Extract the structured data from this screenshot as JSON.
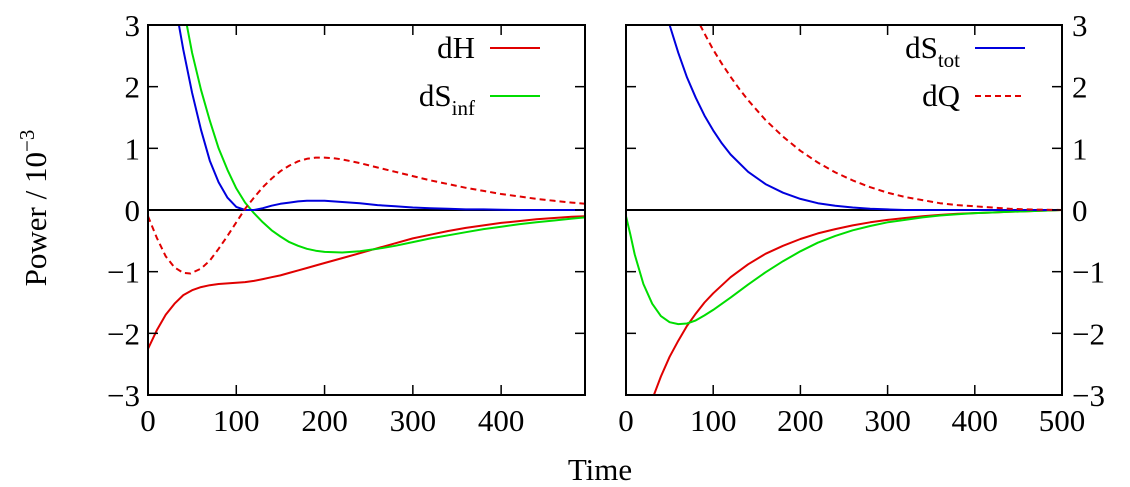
{
  "chart_data": {
    "type": "line",
    "ylabel": "Power / 10",
    "ylabel_exponent": "−3",
    "xlabel": "Time",
    "panels": [
      {
        "name": "left",
        "xlim": [
          0,
          495
        ],
        "ylim": [
          -3,
          3
        ],
        "x_ticks": [
          0,
          100,
          200,
          300,
          400
        ],
        "x_tick_labels": [
          "0",
          "100",
          "200",
          "300",
          "400"
        ],
        "y_ticks": [
          -3,
          -2,
          -1,
          0,
          1,
          2,
          3
        ],
        "y_tick_labels": [
          "−3",
          "−2",
          "−1",
          "0",
          "1",
          "2",
          "3"
        ],
        "y_tick_side": "left",
        "legend": [
          {
            "text": "dH",
            "sub": "",
            "color": "#e00000",
            "dash": ""
          },
          {
            "text": "dS",
            "sub": "inf",
            "color": "#00dd00",
            "dash": ""
          }
        ],
        "series": [
          {
            "key": "dH",
            "color": "#e00000",
            "dash": "",
            "x": [
              0,
              10,
              20,
              30,
              40,
              50,
              60,
              70,
              80,
              90,
              100,
              110,
              120,
              130,
              140,
              150,
              160,
              170,
              180,
              190,
              200,
              220,
              240,
              260,
              280,
              300,
              320,
              340,
              360,
              380,
              400,
              420,
              440,
              460,
              480,
              495
            ],
            "y": [
              -2.25,
              -1.95,
              -1.7,
              -1.52,
              -1.38,
              -1.3,
              -1.25,
              -1.22,
              -1.2,
              -1.19,
              -1.18,
              -1.17,
              -1.15,
              -1.12,
              -1.09,
              -1.06,
              -1.02,
              -0.98,
              -0.94,
              -0.9,
              -0.86,
              -0.78,
              -0.7,
              -0.62,
              -0.54,
              -0.46,
              -0.4,
              -0.34,
              -0.29,
              -0.25,
              -0.21,
              -0.18,
              -0.15,
              -0.13,
              -0.11,
              -0.1
            ]
          },
          {
            "key": "dSinf",
            "color": "#00dd00",
            "dash": "",
            "x": [
              44,
              50,
              60,
              70,
              80,
              90,
              100,
              110,
              120,
              130,
              140,
              150,
              160,
              170,
              180,
              190,
              200,
              220,
              240,
              260,
              280,
              300,
              320,
              340,
              360,
              380,
              400,
              420,
              440,
              460,
              480,
              495
            ],
            "y": [
              3.0,
              2.55,
              1.95,
              1.45,
              1.0,
              0.65,
              0.35,
              0.12,
              -0.05,
              -0.2,
              -0.33,
              -0.43,
              -0.52,
              -0.58,
              -0.63,
              -0.66,
              -0.68,
              -0.69,
              -0.67,
              -0.63,
              -0.58,
              -0.52,
              -0.46,
              -0.41,
              -0.36,
              -0.31,
              -0.27,
              -0.23,
              -0.2,
              -0.17,
              -0.14,
              -0.12
            ]
          },
          {
            "key": "dStot",
            "color": "#0000dd",
            "dash": "",
            "x": [
              35,
              40,
              50,
              60,
              70,
              80,
              90,
              100,
              110,
              120,
              130,
              140,
              150,
              160,
              170,
              180,
              190,
              200,
              220,
              240,
              260,
              280,
              300,
              320,
              340,
              360,
              380,
              400,
              420,
              440,
              460,
              480,
              495
            ],
            "y": [
              3.0,
              2.6,
              1.9,
              1.3,
              0.8,
              0.45,
              0.2,
              0.05,
              0.0,
              0.0,
              0.03,
              0.07,
              0.1,
              0.12,
              0.14,
              0.15,
              0.15,
              0.15,
              0.13,
              0.11,
              0.08,
              0.06,
              0.04,
              0.03,
              0.02,
              0.01,
              0.01,
              0.005,
              0.0,
              0.0,
              0.0,
              0.0,
              0.0
            ]
          },
          {
            "key": "dQ",
            "color": "#e00000",
            "dash": "6,4",
            "x": [
              0,
              10,
              20,
              30,
              40,
              48,
              60,
              70,
              80,
              90,
              100,
              110,
              120,
              130,
              140,
              150,
              160,
              170,
              180,
              190,
              200,
              210,
              220,
              240,
              260,
              280,
              300,
              320,
              340,
              360,
              380,
              400,
              420,
              440,
              460,
              480,
              495
            ],
            "y": [
              -0.1,
              -0.45,
              -0.75,
              -0.93,
              -1.02,
              -1.03,
              -0.95,
              -0.82,
              -0.63,
              -0.42,
              -0.2,
              0.02,
              0.2,
              0.37,
              0.51,
              0.63,
              0.72,
              0.79,
              0.83,
              0.85,
              0.85,
              0.84,
              0.82,
              0.76,
              0.69,
              0.62,
              0.55,
              0.48,
              0.42,
              0.36,
              0.31,
              0.26,
              0.22,
              0.18,
              0.15,
              0.12,
              0.1
            ]
          }
        ]
      },
      {
        "name": "right",
        "xlim": [
          0,
          500
        ],
        "ylim": [
          -3,
          3
        ],
        "x_ticks": [
          0,
          100,
          200,
          300,
          400,
          500
        ],
        "x_tick_labels": [
          "0",
          "100",
          "200",
          "300",
          "400",
          "500"
        ],
        "y_ticks": [
          -3,
          -2,
          -1,
          0,
          1,
          2,
          3
        ],
        "y_tick_labels": [
          "−3",
          "−2",
          "−1",
          "0",
          "1",
          "2",
          "3"
        ],
        "y_tick_side": "right",
        "legend": [
          {
            "text": "dS",
            "sub": "tot",
            "color": "#0000dd",
            "dash": ""
          },
          {
            "text": "dQ",
            "sub": "",
            "color": "#e00000",
            "dash": "6,4"
          }
        ],
        "series": [
          {
            "key": "dH",
            "color": "#e00000",
            "dash": "",
            "x": [
              32,
              40,
              50,
              60,
              70,
              80,
              90,
              100,
              120,
              140,
              160,
              180,
              200,
              220,
              240,
              260,
              280,
              300,
              320,
              340,
              360,
              380,
              400,
              420,
              440,
              460,
              480,
              500
            ],
            "y": [
              -3.0,
              -2.7,
              -2.38,
              -2.12,
              -1.88,
              -1.68,
              -1.5,
              -1.35,
              -1.09,
              -0.88,
              -0.71,
              -0.58,
              -0.47,
              -0.38,
              -0.31,
              -0.25,
              -0.2,
              -0.16,
              -0.13,
              -0.1,
              -0.08,
              -0.06,
              -0.05,
              -0.04,
              -0.03,
              -0.02,
              -0.01,
              0.0
            ]
          },
          {
            "key": "dSinf",
            "color": "#00dd00",
            "dash": "",
            "x": [
              0,
              5,
              10,
              20,
              30,
              40,
              50,
              60,
              70,
              80,
              90,
              100,
              120,
              140,
              160,
              180,
              200,
              220,
              240,
              260,
              280,
              300,
              320,
              340,
              360,
              380,
              400,
              420,
              440,
              460,
              480,
              500
            ],
            "y": [
              -0.1,
              -0.4,
              -0.72,
              -1.2,
              -1.52,
              -1.72,
              -1.82,
              -1.85,
              -1.84,
              -1.79,
              -1.71,
              -1.62,
              -1.42,
              -1.21,
              -1.01,
              -0.83,
              -0.67,
              -0.53,
              -0.42,
              -0.33,
              -0.26,
              -0.2,
              -0.16,
              -0.12,
              -0.09,
              -0.07,
              -0.05,
              -0.04,
              -0.03,
              -0.02,
              -0.01,
              0.0
            ]
          },
          {
            "key": "dStot",
            "color": "#0000dd",
            "dash": "",
            "x": [
              50,
              60,
              70,
              80,
              90,
              100,
              110,
              120,
              140,
              160,
              180,
              200,
              220,
              240,
              260,
              280,
              300,
              320,
              340,
              360,
              380,
              400,
              450,
              500
            ],
            "y": [
              3.0,
              2.55,
              2.15,
              1.82,
              1.53,
              1.29,
              1.08,
              0.9,
              0.62,
              0.42,
              0.28,
              0.18,
              0.11,
              0.07,
              0.04,
              0.02,
              0.01,
              0.0,
              0.0,
              0.0,
              0.0,
              0.0,
              0.0,
              0.0
            ]
          },
          {
            "key": "dQ",
            "color": "#e00000",
            "dash": "6,4",
            "x": [
              85,
              90,
              100,
              110,
              120,
              130,
              140,
              160,
              180,
              200,
              220,
              240,
              260,
              280,
              300,
              320,
              340,
              360,
              380,
              400,
              420,
              440,
              460,
              480,
              500
            ],
            "y": [
              3.0,
              2.86,
              2.6,
              2.37,
              2.16,
              1.96,
              1.78,
              1.46,
              1.19,
              0.96,
              0.77,
              0.61,
              0.48,
              0.37,
              0.28,
              0.21,
              0.16,
              0.11,
              0.08,
              0.06,
              0.04,
              0.02,
              0.01,
              0.005,
              0.0
            ]
          }
        ]
      }
    ]
  }
}
